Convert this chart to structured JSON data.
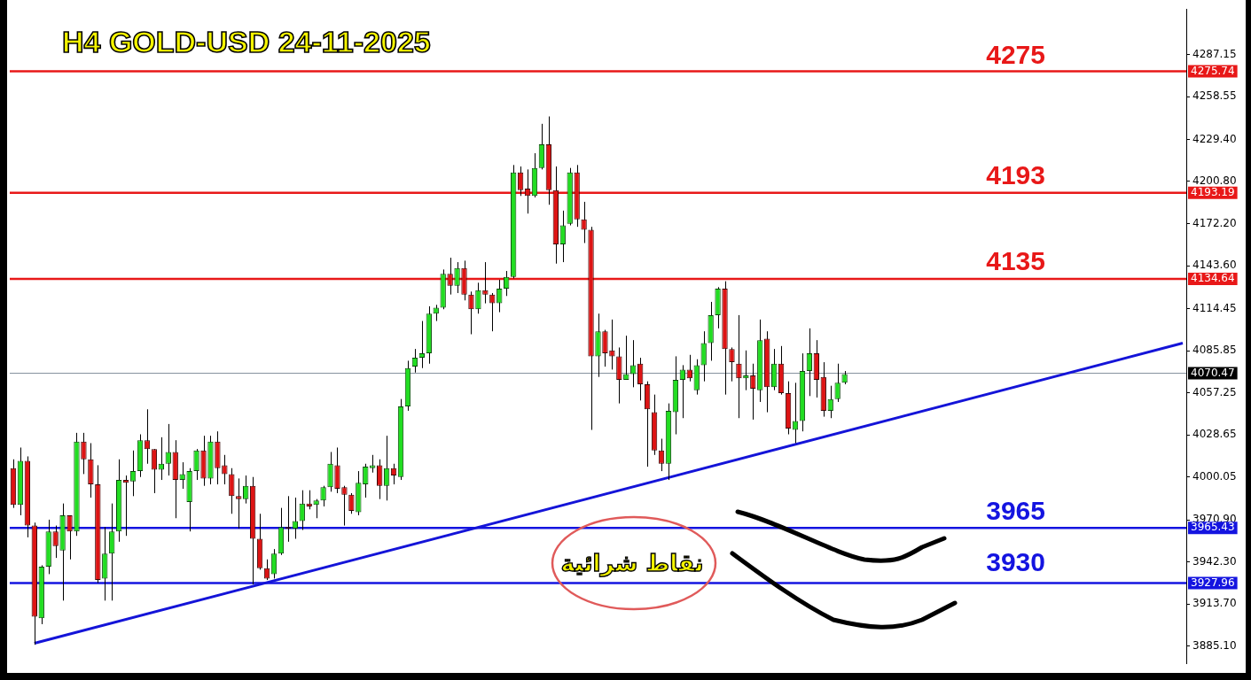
{
  "chart_data": {
    "type": "candlestick",
    "title": "H4 GOLD-USD 24-11-2025",
    "annotations": [
      "نقاط شرائية",
      {
        "text": "4275",
        "y": 4275
      },
      {
        "text": "4193",
        "y": 4193
      },
      {
        "text": "4135",
        "y": 4135
      },
      {
        "text": "3965",
        "y": 3965
      },
      {
        "text": "3930",
        "y": 3930
      }
    ],
    "categories": [
      null,
      null,
      null,
      null,
      null,
      null,
      null,
      null,
      null,
      null,
      null,
      null,
      null,
      null,
      null,
      null,
      null,
      null,
      null,
      null,
      null,
      null,
      null,
      null,
      null,
      null,
      null,
      null,
      null,
      null,
      null,
      null,
      null,
      null,
      null,
      null,
      null,
      null,
      null,
      null,
      null,
      null,
      null,
      null,
      null,
      null,
      null,
      null,
      null,
      null,
      null,
      null,
      null,
      null,
      null,
      null,
      null,
      null,
      null,
      null,
      null,
      null,
      null,
      null,
      null,
      null,
      null,
      null,
      null,
      null,
      null,
      null,
      null,
      null,
      null,
      null,
      null,
      null,
      null,
      null,
      null,
      null,
      null,
      null,
      null,
      null,
      null,
      null,
      null,
      null,
      null,
      null,
      null,
      null,
      null,
      null,
      null,
      null,
      null,
      null,
      null,
      null,
      null,
      null,
      null,
      null,
      null,
      null,
      null,
      null,
      null,
      null,
      null,
      null,
      null,
      null,
      null,
      null,
      null,
      null,
      null,
      null,
      null,
      null,
      null,
      null,
      null,
      null,
      null,
      null,
      null,
      null,
      null,
      null,
      null,
      null,
      null,
      null,
      null,
      null,
      null,
      null,
      null,
      null,
      null,
      null,
      null,
      null,
      null,
      null,
      null,
      null,
      null,
      null,
      null,
      null,
      null,
      null,
      null,
      null,
      null,
      null,
      null,
      null,
      null,
      null,
      null
    ],
    "ohlc": [
      [
        4006,
        4012,
        3979,
        3981
      ],
      [
        3981,
        4020,
        3974,
        4011
      ],
      [
        4011,
        4014,
        3959,
        3967
      ],
      [
        3967,
        3969,
        3886,
        3905
      ],
      [
        3904,
        3940,
        3900,
        3939
      ],
      [
        3939,
        3971,
        3934,
        3963
      ],
      [
        3963,
        3967,
        3945,
        3953
      ],
      [
        3950,
        3982,
        3916,
        3974
      ],
      [
        3974,
        3974,
        3944,
        3963
      ],
      [
        3963,
        4030,
        3960,
        4024
      ],
      [
        4024,
        4030,
        4002,
        4012
      ],
      [
        4012,
        4023,
        3986,
        3995
      ],
      [
        3995,
        4008,
        3928,
        3930
      ],
      [
        3931,
        3966,
        3916,
        3948
      ],
      [
        3948,
        3982,
        3916,
        3963
      ],
      [
        3963,
        4012,
        3956,
        3998
      ],
      [
        3998,
        4001,
        3960,
        3996
      ],
      [
        3997,
        4018,
        3987,
        4004
      ],
      [
        4004,
        4029,
        4000,
        4025
      ],
      [
        4025,
        4046,
        4009,
        4019
      ],
      [
        4019,
        4019,
        3989,
        4005
      ],
      [
        4005,
        4027,
        3998,
        4009
      ],
      [
        4009,
        4036,
        4001,
        4017
      ],
      [
        4017,
        4025,
        3972,
        3998
      ],
      [
        3998,
        4010,
        3992,
        4002
      ],
      [
        3983,
        4006,
        3963,
        4004
      ],
      [
        4004,
        4019,
        3998,
        4018
      ],
      [
        4018,
        4028,
        3994,
        3999
      ],
      [
        3999,
        4028,
        3995,
        4024
      ],
      [
        4024,
        4031,
        3995,
        4006
      ],
      [
        4008,
        4015,
        3995,
        4002
      ],
      [
        4002,
        4006,
        3975,
        3987
      ],
      [
        3987,
        3999,
        3965,
        3985
      ],
      [
        3985,
        4001,
        3982,
        3994
      ],
      [
        3994,
        4000,
        3927,
        3958
      ],
      [
        3958,
        3975,
        3937,
        3938
      ],
      [
        3938,
        3944,
        3930,
        3931
      ],
      [
        3934,
        3951,
        3931,
        3948
      ],
      [
        3948,
        3979,
        3947,
        3966
      ],
      [
        3966,
        3987,
        3956,
        3965
      ],
      [
        3965,
        3986,
        3958,
        3970
      ],
      [
        3970,
        3991,
        3964,
        3982
      ],
      [
        3982,
        3991,
        3978,
        3980
      ],
      [
        3981,
        3985,
        3972,
        3984
      ],
      [
        3984,
        3994,
        3980,
        3993
      ],
      [
        3993,
        4017,
        3990,
        4009
      ],
      [
        4008,
        4020,
        3989,
        3992
      ],
      [
        3993,
        3994,
        3967,
        3988
      ],
      [
        3988,
        3989,
        3975,
        3977
      ],
      [
        3976,
        4004,
        3974,
        3996
      ],
      [
        3995,
        4009,
        3986,
        4007
      ],
      [
        4006,
        4015,
        4003,
        4008
      ],
      [
        4008,
        4012,
        3985,
        3994
      ],
      [
        3994,
        4028,
        3984,
        4006
      ],
      [
        4006,
        4009,
        3995,
        4001
      ],
      [
        4000,
        4053,
        3998,
        4048
      ],
      [
        4048,
        4079,
        4045,
        4074
      ],
      [
        4075,
        4087,
        4071,
        4081
      ],
      [
        4081,
        4106,
        4074,
        4084
      ],
      [
        4084,
        4116,
        4077,
        4111
      ],
      [
        4111,
        4117,
        4106,
        4115
      ],
      [
        4115,
        4141,
        4114,
        4138
      ],
      [
        4138,
        4149,
        4124,
        4130
      ],
      [
        4130,
        4146,
        4125,
        4142
      ],
      [
        4142,
        4147,
        4120,
        4124
      ],
      [
        4124,
        4126,
        4097,
        4114
      ],
      [
        4114,
        4132,
        4111,
        4127
      ],
      [
        4127,
        4146,
        4118,
        4124
      ],
      [
        4124,
        4125,
        4099,
        4118
      ],
      [
        4118,
        4134,
        4112,
        4128
      ],
      [
        4128,
        4140,
        4123,
        4136
      ],
      [
        4136,
        4212,
        4135,
        4207
      ],
      [
        4207,
        4211,
        4191,
        4195
      ],
      [
        4196,
        4209,
        4179,
        4191
      ],
      [
        4191,
        4220,
        4190,
        4210
      ],
      [
        4210,
        4240,
        4209,
        4226
      ],
      [
        4226,
        4245,
        4185,
        4195
      ],
      [
        4195,
        4211,
        4145,
        4158
      ],
      [
        4158,
        4181,
        4146,
        4171
      ],
      [
        4172,
        4210,
        4171,
        4207
      ],
      [
        4207,
        4212,
        4170,
        4175
      ],
      [
        4175,
        4187,
        4159,
        4168
      ],
      [
        4168,
        4170,
        4032,
        4082
      ],
      [
        4082,
        4111,
        4068,
        4099
      ],
      [
        4099,
        4100,
        4075,
        4084
      ],
      [
        4086,
        4107,
        4073,
        4082
      ],
      [
        4082,
        4088,
        4050,
        4066
      ],
      [
        4066,
        4096,
        4066,
        4070
      ],
      [
        4070,
        4093,
        4061,
        4076
      ],
      [
        4077,
        4081,
        4052,
        4063
      ],
      [
        4063,
        4065,
        4007,
        4046
      ],
      [
        4044,
        4056,
        4015,
        4018
      ],
      [
        4018,
        4026,
        4004,
        4009
      ],
      [
        4009,
        4050,
        3998,
        4045
      ],
      [
        4044,
        4082,
        4029,
        4066
      ],
      [
        4066,
        4076,
        4040,
        4073
      ],
      [
        4073,
        4083,
        4065,
        4067
      ],
      [
        4059,
        4080,
        4056,
        4076
      ],
      [
        4076,
        4099,
        4065,
        4091
      ],
      [
        4091,
        4119,
        4079,
        4110
      ],
      [
        4110,
        4129,
        4101,
        4128
      ],
      [
        4128,
        4133,
        4056,
        4087
      ],
      [
        4087,
        4088,
        4065,
        4078
      ],
      [
        4077,
        4110,
        4040,
        4067
      ],
      [
        4067,
        4086,
        4059,
        4069
      ],
      [
        4069,
        4077,
        4039,
        4060
      ],
      [
        4059,
        4107,
        4051,
        4093
      ],
      [
        4094,
        4099,
        4044,
        4061
      ],
      [
        4061,
        4087,
        4059,
        4077
      ],
      [
        4077,
        4089,
        4056,
        4057
      ],
      [
        4057,
        4065,
        4029,
        4033
      ],
      [
        4032,
        4064,
        4023,
        4038
      ],
      [
        4038,
        4084,
        4031,
        4072
      ],
      [
        4072,
        4101,
        4055,
        4084
      ],
      [
        4084,
        4093,
        4054,
        4066
      ],
      [
        4068,
        4078,
        4041,
        4045
      ],
      [
        4045,
        4062,
        4040,
        4053
      ],
      [
        4053,
        4077,
        4051,
        4064
      ],
      [
        4064,
        4072,
        4063,
        4070
      ],
      null,
      null,
      null,
      null,
      null,
      null,
      null,
      null,
      null,
      null,
      null,
      null,
      null,
      null,
      null,
      null,
      null,
      null,
      null,
      null,
      null,
      null,
      null,
      null,
      null,
      null,
      null,
      null,
      null,
      null,
      null,
      null,
      null,
      null,
      null,
      null,
      null,
      null,
      null,
      null,
      null,
      null,
      null,
      null,
      null,
      null,
      null,
      null
    ],
    "series": [
      {
        "type": "line",
        "color": "#1414d8",
        "values": [
          null,
          null,
          null,
          3887,
          null,
          null,
          null,
          null,
          null,
          null,
          null,
          null,
          null,
          null,
          null,
          null,
          null,
          null,
          null,
          null,
          null,
          null,
          null,
          null,
          null,
          null,
          null,
          null,
          null,
          null,
          null,
          null,
          null,
          null,
          null,
          null,
          null,
          null,
          null,
          null,
          null,
          null,
          null,
          null,
          null,
          null,
          null,
          null,
          null,
          null,
          null,
          null,
          null,
          null,
          null,
          null,
          null,
          null,
          null,
          null,
          null,
          null,
          null,
          null,
          null,
          null,
          null,
          null,
          null,
          null,
          null,
          null,
          null,
          null,
          null,
          null,
          null,
          null,
          null,
          null,
          null,
          null,
          null,
          null,
          null,
          null,
          null,
          null,
          null,
          null,
          null,
          null,
          null,
          null,
          null,
          null,
          null,
          null,
          null,
          null,
          null,
          null,
          null,
          null,
          null,
          null,
          null,
          null,
          null,
          null,
          null,
          null,
          null,
          null,
          null,
          null,
          null,
          null,
          null,
          null,
          null,
          null,
          null,
          null,
          null,
          null,
          null,
          null,
          null,
          null,
          null,
          null,
          null,
          null,
          null,
          null,
          null,
          null,
          null,
          null,
          null,
          null,
          null,
          null,
          null,
          null,
          null,
          null,
          null,
          null,
          null,
          null,
          null,
          null,
          null,
          null,
          null,
          null,
          null,
          null,
          null,
          null,
          null,
          null,
          null,
          null,
          4091
        ]
      }
    ],
    "ylim": [
      3873,
      4318
    ],
    "yticks": [
      {
        "value": 3885.1,
        "label": "3885.10"
      },
      {
        "value": 3913.7,
        "label": "3913.70"
      },
      {
        "value": 3942.3,
        "label": "3942.30"
      },
      {
        "value": 3970.9,
        "label": "3970.90"
      },
      {
        "value": 4000.05,
        "label": "4000.05"
      },
      {
        "value": 4028.65,
        "label": "4028.65"
      },
      {
        "value": 4057.25,
        "label": "4057.25"
      },
      {
        "value": 4085.85,
        "label": "4085.85"
      },
      {
        "value": 4114.45,
        "label": "4114.45"
      },
      {
        "value": 4143.6,
        "label": "4143.60"
      },
      {
        "value": 4172.2,
        "label": "4172.20"
      },
      {
        "value": 4200.8,
        "label": "4200.80"
      },
      {
        "value": 4229.4,
        "label": "4229.40"
      },
      {
        "value": 4258.55,
        "label": "4258.55"
      },
      {
        "value": 4287.15,
        "label": "4287.15"
      }
    ],
    "ref_lines": [
      {
        "axis": "y",
        "value": 4275.74,
        "label": "4275.74",
        "color": "#e81818"
      },
      {
        "axis": "y",
        "value": 4193.19,
        "label": "4193.19",
        "color": "#e81818"
      },
      {
        "axis": "y",
        "value": 4134.64,
        "label": "4134.64",
        "color": "#e81818"
      },
      {
        "axis": "y",
        "value": 4070.47,
        "label": "4070.47",
        "color": "#7f8c99",
        "line_style": "solid"
      },
      {
        "axis": "y",
        "value": 3965.43,
        "label": "3965.43",
        "color": "#1414e0"
      },
      {
        "axis": "y",
        "value": 3927.96,
        "label": "3927.96",
        "color": "#1414e0"
      }
    ],
    "tick_labels": "y",
    "legend": false,
    "grid": false
  }
}
